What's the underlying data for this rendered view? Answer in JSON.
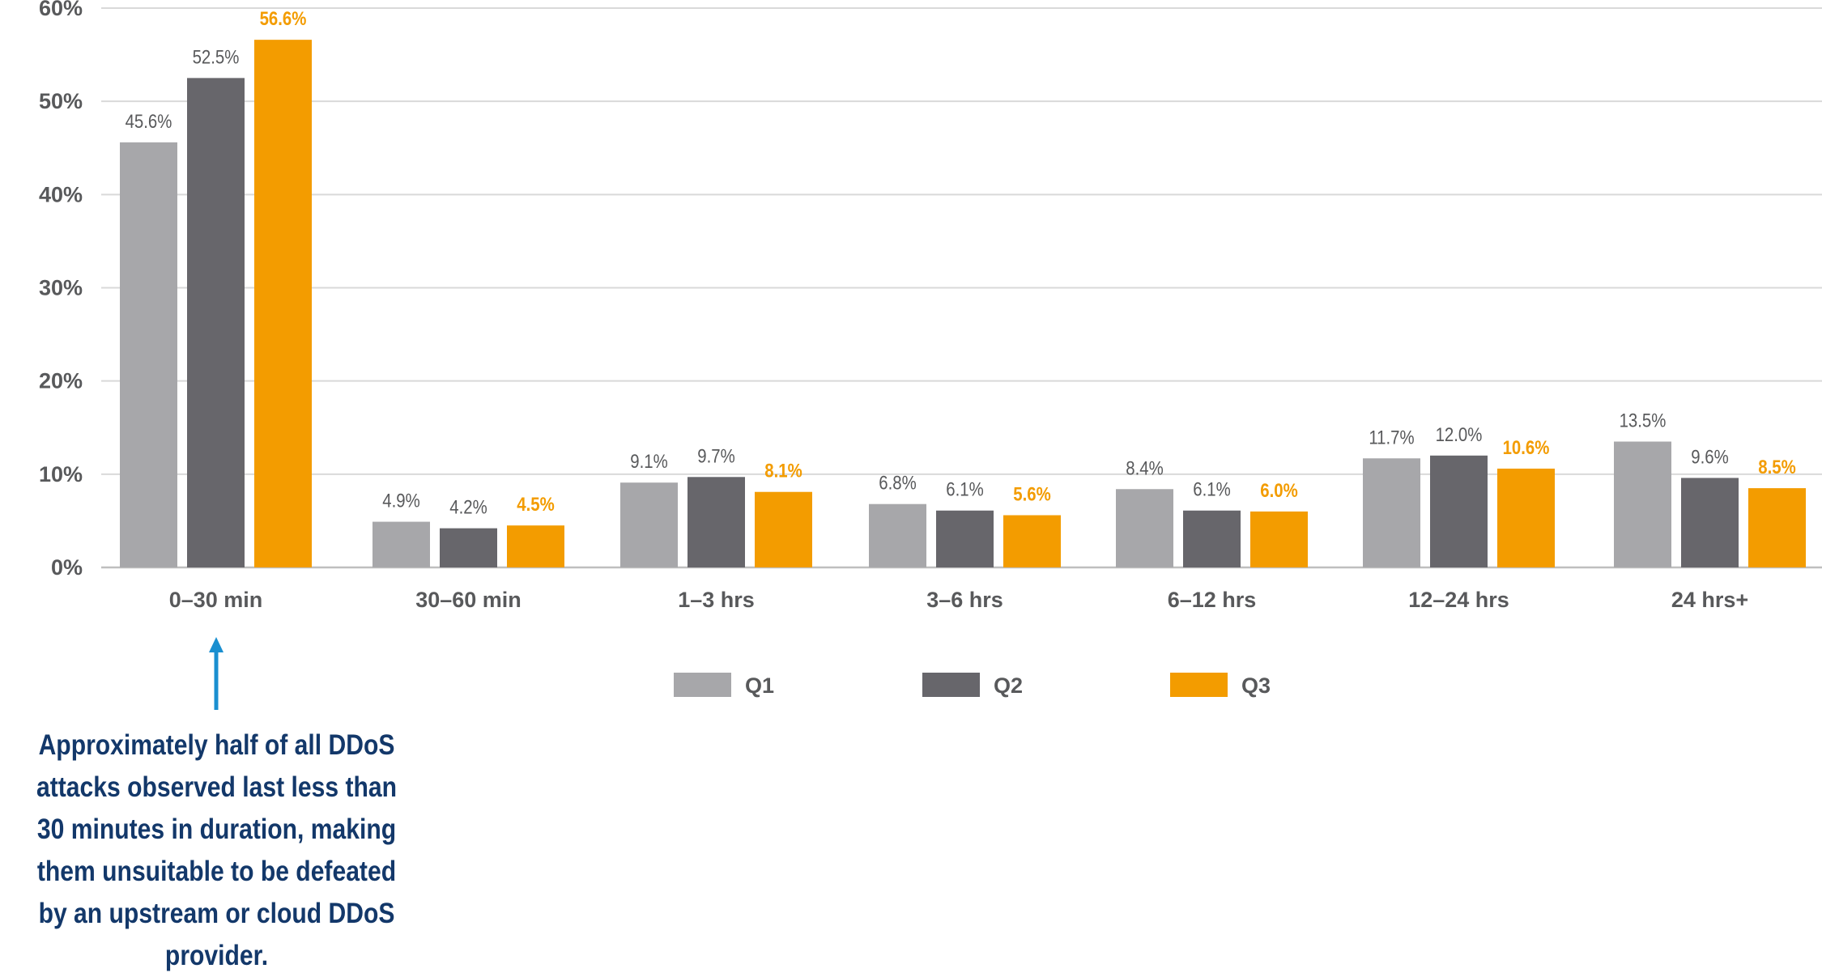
{
  "colors": {
    "q1": "#a7a7aa",
    "q2": "#67666b",
    "q3": "#f39c00",
    "axis_text": "#58595b",
    "grid": "#d9d9d9",
    "annotation_text": "#13386a",
    "arrow": "#1a8fd0"
  },
  "annotation": {
    "text": "Approximately half of all DDoS attacks observed last less than 30 minutes in duration, making them unsuitable to be defeated by an upstream or cloud DDoS provider."
  },
  "chart_data": {
    "type": "bar",
    "categories": [
      "0–30 min",
      "30–60 min",
      "1–3 hrs",
      "3–6 hrs",
      "6–12 hrs",
      "12–24 hrs",
      "24 hrs+"
    ],
    "series": [
      {
        "name": "Q1",
        "values": [
          45.6,
          4.9,
          9.1,
          6.8,
          8.4,
          11.7,
          13.5
        ],
        "labels": [
          "45.6%",
          "4.9%",
          "9.1%",
          "6.8%",
          "8.4%",
          "11.7%",
          "13.5%"
        ]
      },
      {
        "name": "Q2",
        "values": [
          52.5,
          4.2,
          9.7,
          6.1,
          6.1,
          12.0,
          9.6
        ],
        "labels": [
          "52.5%",
          "4.2%",
          "9.7%",
          "6.1%",
          "6.1%",
          "12.0%",
          "9.6%"
        ]
      },
      {
        "name": "Q3",
        "values": [
          56.6,
          4.5,
          8.1,
          5.6,
          6.0,
          10.6,
          8.5
        ],
        "labels": [
          "56.6%",
          "4.5%",
          "8.1%",
          "5.6%",
          "6.0%",
          "10.6%",
          "8.5%"
        ]
      }
    ],
    "yticks": [
      "0%",
      "10%",
      "20%",
      "30%",
      "40%",
      "50%",
      "60%"
    ],
    "ylim": [
      0,
      60
    ],
    "grid": true,
    "legend": "bottom-center",
    "title": "",
    "xlabel": "",
    "ylabel": ""
  }
}
